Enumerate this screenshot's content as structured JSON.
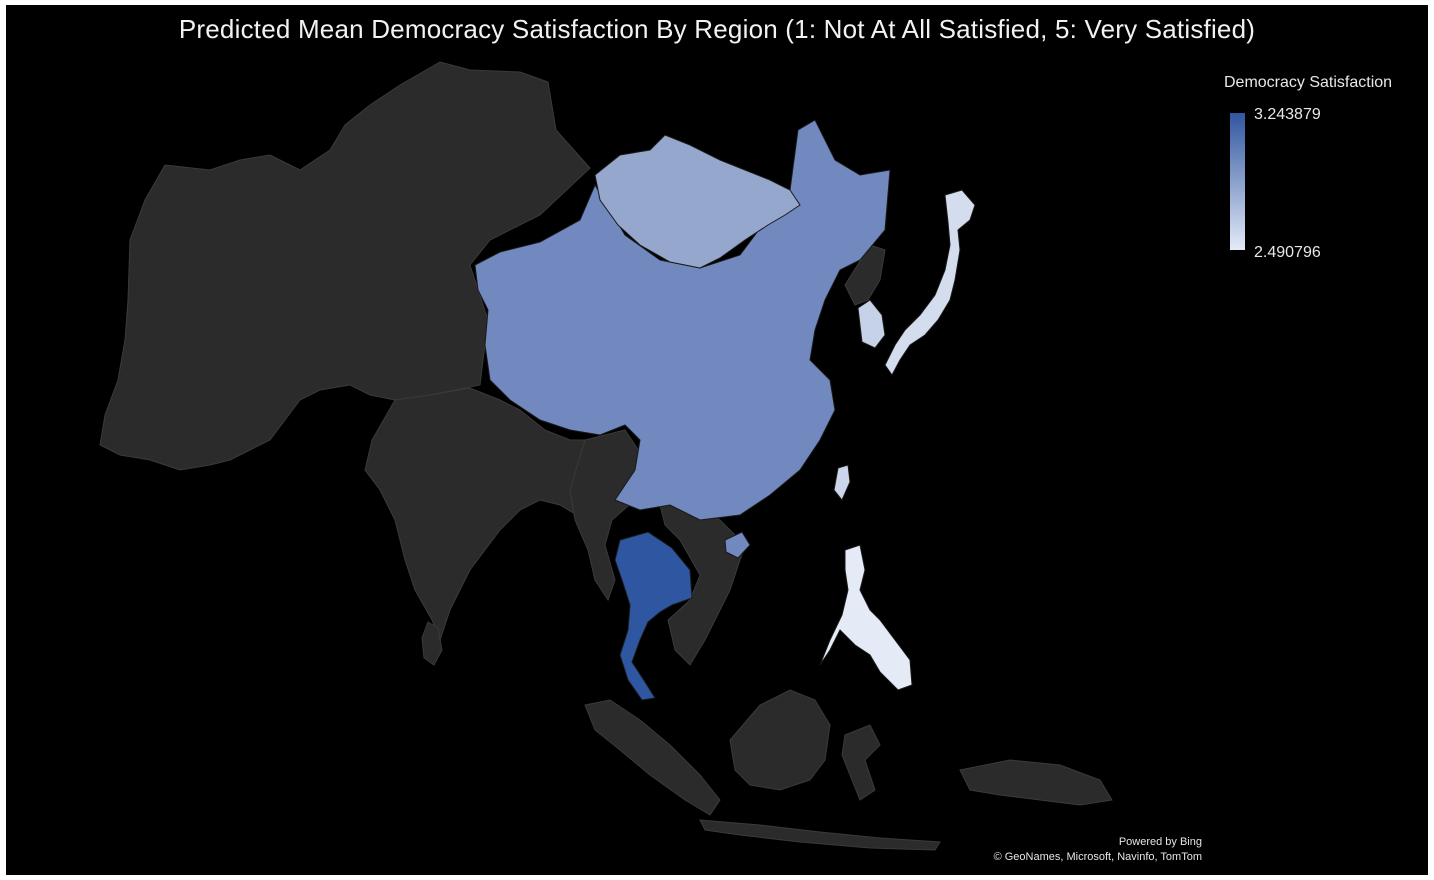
{
  "title": "Predicted Mean Democracy Satisfaction By Region (1: Not At All Satisfied, 5: Very Satisfied)",
  "legend": {
    "title": "Democracy Satisfaction",
    "max_label": "3.243879",
    "min_label": "2.490796",
    "max_value": 3.243879,
    "min_value": 2.490796,
    "color_max": "#2f56a0",
    "color_min": "#e4ebf7"
  },
  "credit": {
    "line1": "Powered by Bing",
    "line2": "© GeoNames, Microsoft, Navinfo, TomTom"
  },
  "colors": {
    "background": "#000000",
    "no_data_land": "#2b2b2b",
    "border": "#3a3a3a"
  },
  "regions": [
    {
      "name": "China",
      "shade": 0.45
    },
    {
      "name": "Mongolia",
      "shade": 0.22
    },
    {
      "name": "Thailand",
      "shade": 1.0
    },
    {
      "name": "South Korea",
      "shade": 0.1
    },
    {
      "name": "Japan",
      "shade": 0.05
    },
    {
      "name": "Taiwan",
      "shade": 0.08
    },
    {
      "name": "Philippines",
      "shade": 0.0
    }
  ]
}
